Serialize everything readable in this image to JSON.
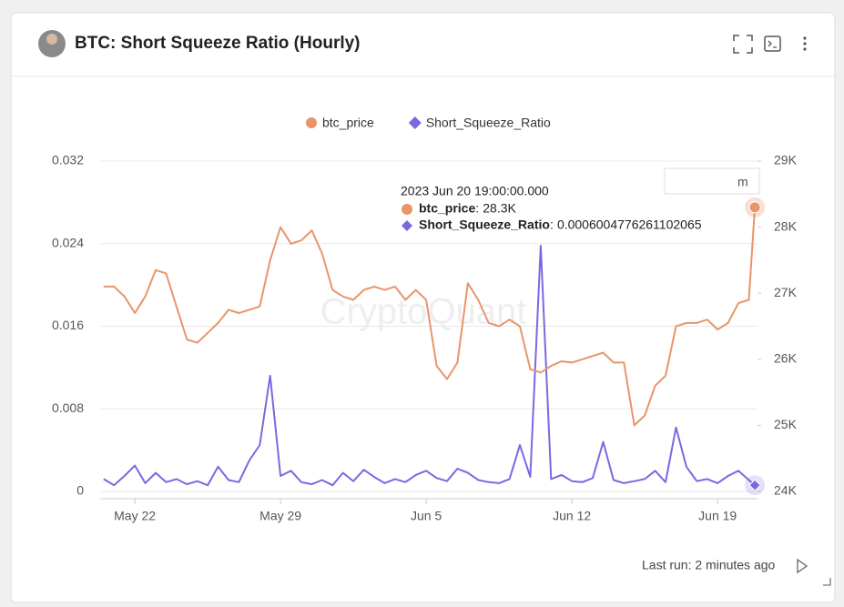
{
  "header": {
    "title": "BTC: Short Squeeze Ratio (Hourly)"
  },
  "footer": {
    "last_run": "Last run: 2 minutes ago"
  },
  "chart_data": {
    "type": "line",
    "watermark": "CryptoQuant",
    "overlay_text": "m",
    "x": [
      "2023-05-20 12:00",
      "2023-05-21 00:00",
      "2023-05-21 12:00",
      "2023-05-22 00:00",
      "2023-05-22 12:00",
      "2023-05-23 00:00",
      "2023-05-23 12:00",
      "2023-05-24 00:00",
      "2023-05-24 12:00",
      "2023-05-25 00:00",
      "2023-05-25 12:00",
      "2023-05-26 00:00",
      "2023-05-26 12:00",
      "2023-05-27 00:00",
      "2023-05-27 12:00",
      "2023-05-28 00:00",
      "2023-05-28 12:00",
      "2023-05-29 00:00",
      "2023-05-29 12:00",
      "2023-05-30 00:00",
      "2023-05-30 12:00",
      "2023-05-31 00:00",
      "2023-05-31 12:00",
      "2023-06-01 00:00",
      "2023-06-01 12:00",
      "2023-06-02 00:00",
      "2023-06-02 12:00",
      "2023-06-03 00:00",
      "2023-06-03 12:00",
      "2023-06-04 00:00",
      "2023-06-04 12:00",
      "2023-06-05 00:00",
      "2023-06-05 12:00",
      "2023-06-06 00:00",
      "2023-06-06 12:00",
      "2023-06-07 00:00",
      "2023-06-07 12:00",
      "2023-06-08 00:00",
      "2023-06-08 12:00",
      "2023-06-09 00:00",
      "2023-06-09 12:00",
      "2023-06-10 00:00",
      "2023-06-10 12:00",
      "2023-06-11 00:00",
      "2023-06-11 12:00",
      "2023-06-12 00:00",
      "2023-06-12 12:00",
      "2023-06-13 00:00",
      "2023-06-13 12:00",
      "2023-06-14 00:00",
      "2023-06-14 12:00",
      "2023-06-15 00:00",
      "2023-06-15 12:00",
      "2023-06-16 00:00",
      "2023-06-16 12:00",
      "2023-06-17 00:00",
      "2023-06-17 12:00",
      "2023-06-18 00:00",
      "2023-06-18 12:00",
      "2023-06-19 00:00",
      "2023-06-19 12:00",
      "2023-06-20 00:00",
      "2023-06-20 12:00",
      "2023-06-20 19:00"
    ],
    "xlim": [
      "2023-05-20 08:00",
      "2023-06-20 22:00"
    ],
    "xticks": [
      {
        "value": "2023-05-22 00:00",
        "label": "May 22"
      },
      {
        "value": "2023-05-29 00:00",
        "label": "May 29"
      },
      {
        "value": "2023-06-05 00:00",
        "label": "Jun 5"
      },
      {
        "value": "2023-06-12 00:00",
        "label": "Jun 12"
      },
      {
        "value": "2023-06-19 00:00",
        "label": "Jun 19"
      }
    ],
    "ylim": [
      0,
      0.032
    ],
    "yticks": [
      0,
      0.008,
      0.016,
      0.024,
      0.032
    ],
    "y2lim": [
      24000,
      29000
    ],
    "y2ticks": [
      {
        "value": 24000,
        "label": "24K"
      },
      {
        "value": 25000,
        "label": "25K"
      },
      {
        "value": 26000,
        "label": "26K"
      },
      {
        "value": 27000,
        "label": "27K"
      },
      {
        "value": 28000,
        "label": "28K"
      },
      {
        "value": 29000,
        "label": "29K"
      }
    ],
    "grid": true,
    "legend": "top",
    "series": [
      {
        "name": "btc_price",
        "color": "#e8956a",
        "axis": "y2",
        "marker": "circle",
        "values": [
          27100,
          27100,
          26950,
          26700,
          26950,
          27350,
          27300,
          26800,
          26300,
          26250,
          26400,
          26550,
          26750,
          26700,
          26750,
          26800,
          27500,
          28000,
          27750,
          27800,
          27950,
          27600,
          27050,
          26950,
          26900,
          27050,
          27100,
          27050,
          27100,
          26900,
          27050,
          26900,
          25900,
          25700,
          25950,
          27150,
          26900,
          26550,
          26500,
          26600,
          26500,
          25850,
          25800,
          25900,
          25970,
          25950,
          26000,
          26050,
          26100,
          25950,
          25950,
          25000,
          25150,
          25600,
          25750,
          26500,
          26550,
          26550,
          26600,
          26450,
          26550,
          26850,
          26900,
          28300
        ]
      },
      {
        "name": "Short_Squeeze_Ratio",
        "color": "#7b68e0",
        "marker": "diamond",
        "values": [
          0.0012,
          0.0006,
          0.0015,
          0.0025,
          0.0008,
          0.0018,
          0.0009,
          0.0012,
          0.0007,
          0.001,
          0.0006,
          0.0024,
          0.0011,
          0.0009,
          0.003,
          0.0045,
          0.0112,
          0.0015,
          0.002,
          0.0009,
          0.0007,
          0.0011,
          0.0006,
          0.0018,
          0.001,
          0.0021,
          0.0014,
          0.0008,
          0.0012,
          0.0009,
          0.0016,
          0.002,
          0.0013,
          0.001,
          0.0022,
          0.0018,
          0.0011,
          0.0009,
          0.0008,
          0.0012,
          0.0045,
          0.0014,
          0.0238,
          0.0012,
          0.0016,
          0.001,
          0.0009,
          0.0013,
          0.0048,
          0.0011,
          0.0008,
          0.001,
          0.0012,
          0.002,
          0.0009,
          0.0062,
          0.0024,
          0.001,
          0.0012,
          0.0008,
          0.0015,
          0.002,
          0.0011,
          0.0006004776261102065
        ]
      }
    ],
    "tooltip": {
      "title": "2023 Jun 20 19:00:00.000",
      "value_labels": [
        "28.3K",
        "0.0006004776261102065"
      ]
    }
  }
}
